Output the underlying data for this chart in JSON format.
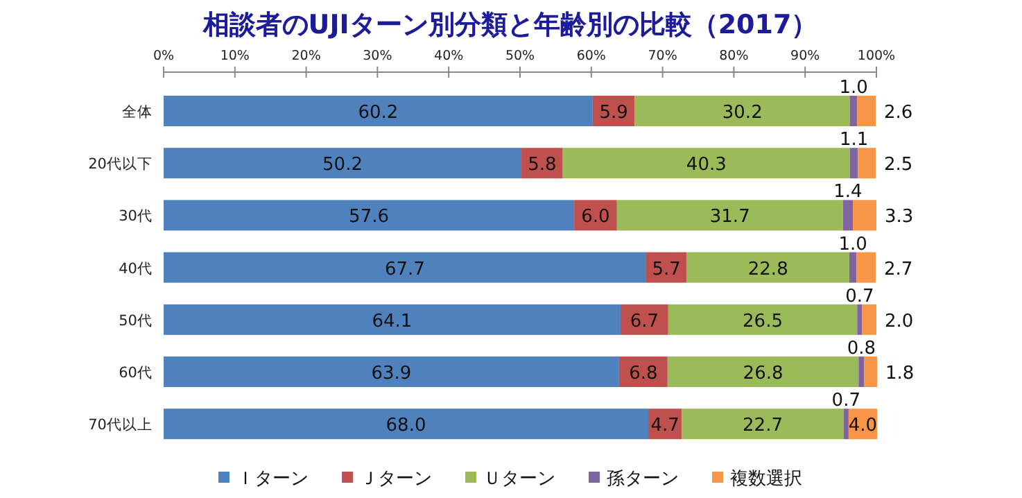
{
  "chart_data": {
    "type": "bar",
    "orientation": "horizontal",
    "stacked": true,
    "title": "相談者のUJIターン別分類と年齢別の比較（2017）",
    "categories": [
      "全体",
      "20代以下",
      "30代",
      "40代",
      "50代",
      "60代",
      "70代以上"
    ],
    "series": [
      {
        "name": "Ｉターン",
        "color": "#4f81bd",
        "values": [
          60.2,
          50.2,
          57.6,
          67.7,
          64.1,
          63.9,
          68.0
        ],
        "value_labels": [
          "60.2",
          "50.2",
          "57.6",
          "67.7",
          "64.1",
          "63.9",
          "68.0"
        ]
      },
      {
        "name": "Ｊターン",
        "color": "#c0504d",
        "values": [
          5.9,
          5.8,
          6.0,
          5.7,
          6.7,
          6.8,
          4.7
        ],
        "value_labels": [
          "5.9",
          "5.8",
          "6.0",
          "5.7",
          "6.7",
          "6.8",
          "4.7"
        ]
      },
      {
        "name": "Ｕターン",
        "color": "#9bbb59",
        "values": [
          30.2,
          40.3,
          31.7,
          22.8,
          26.5,
          26.8,
          22.7
        ],
        "value_labels": [
          "30.2",
          "40.3",
          "31.7",
          "22.8",
          "26.5",
          "26.8",
          "22.7"
        ]
      },
      {
        "name": "孫ターン",
        "color": "#8064a2",
        "values": [
          1.0,
          1.1,
          1.4,
          1.0,
          0.7,
          0.8,
          0.7
        ],
        "value_labels": [
          "1.0",
          "1.1",
          "1.4",
          "1.0",
          "0.7",
          "0.8",
          "0.7"
        ]
      },
      {
        "name": "複数選択",
        "color": "#f79646",
        "values": [
          2.6,
          2.5,
          3.3,
          2.7,
          2.0,
          1.8,
          4.0
        ],
        "value_labels": [
          "2.6",
          "2.5",
          "3.3",
          "2.7",
          "2.0",
          "1.8",
          "4.0"
        ]
      }
    ],
    "xlim": [
      0,
      100.1
    ],
    "xticks": [
      {
        "value": 0,
        "label": "0%"
      },
      {
        "value": 10,
        "label": "10%"
      },
      {
        "value": 20,
        "label": "20%"
      },
      {
        "value": 30,
        "label": "30%"
      },
      {
        "value": 40,
        "label": "40%"
      },
      {
        "value": 50,
        "label": "50%"
      },
      {
        "value": 60,
        "label": "60%"
      },
      {
        "value": 70,
        "label": "70%"
      },
      {
        "value": 80,
        "label": "80%"
      },
      {
        "value": 90,
        "label": "90%"
      },
      {
        "value": 100,
        "label": "100%"
      }
    ],
    "legend": "bottom",
    "grid": false
  }
}
